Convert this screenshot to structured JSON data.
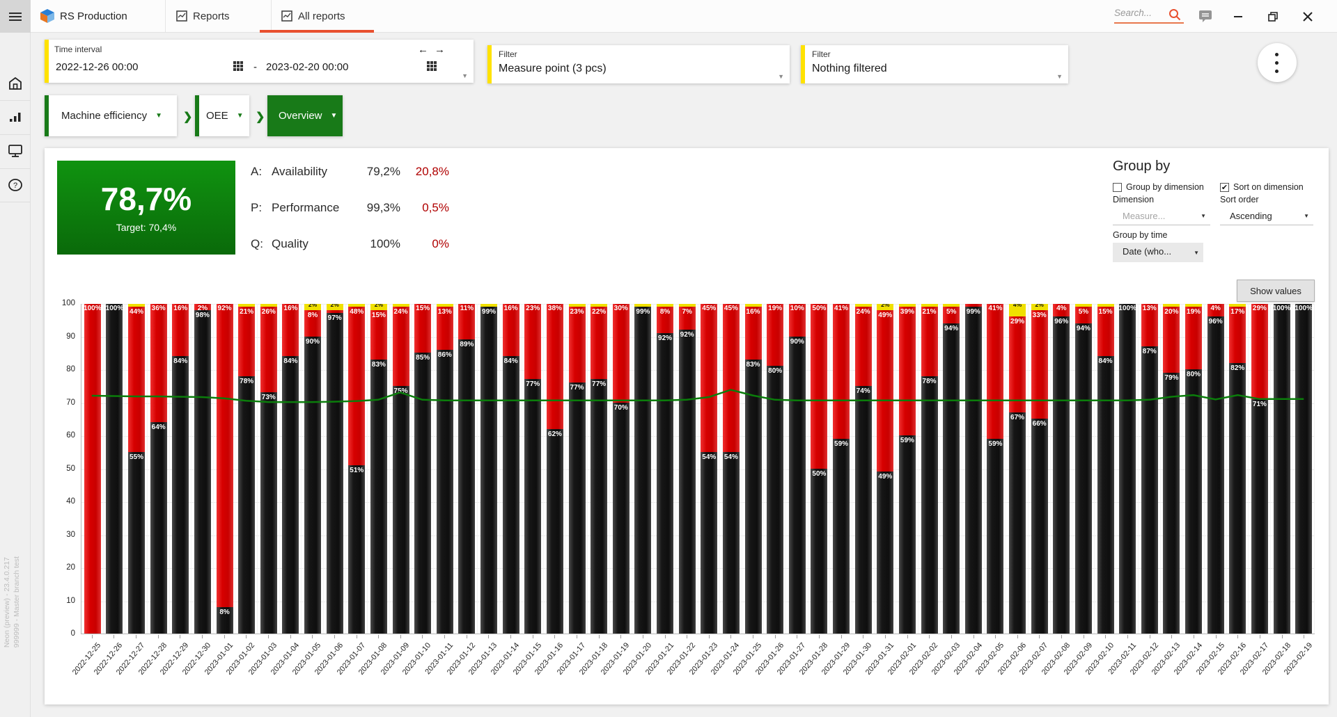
{
  "topbar": {
    "app_name": "RS Production",
    "tabs": [
      {
        "label": "Reports"
      },
      {
        "label": "All reports",
        "active": true
      }
    ],
    "search": {
      "placeholder": "Search..."
    },
    "accent_underline_color": "#e8502f"
  },
  "sidebar": {
    "icons": [
      "home-icon",
      "bar-chart-icon",
      "monitor-icon",
      "help-icon",
      "gear-icon"
    ],
    "version_line1": "999999 - Master branch test",
    "version_line2": "Neon (preview) - 23.4.0.217"
  },
  "filters": {
    "time": {
      "label": "Time interval",
      "start": "2022-12-26 00:00",
      "separator": "-",
      "end": "2023-02-20 00:00",
      "prev_arrow": "←",
      "next_arrow": "→"
    },
    "measure": {
      "label": "Filter",
      "value": "Measure point (3 pcs)"
    },
    "nothing": {
      "label": "Filter",
      "value": "Nothing filtered"
    }
  },
  "breadcrumbs": [
    {
      "label": "Machine efficiency"
    },
    {
      "label": "OEE"
    },
    {
      "label": "Overview",
      "active": true
    }
  ],
  "kpi": {
    "main_value": "78,7%",
    "target": "Target: 70,4%",
    "rows": [
      {
        "prefix": "A:",
        "label": "Availability",
        "value": "79,2%",
        "loss": "20,8%"
      },
      {
        "prefix": "P:",
        "label": "Performance",
        "value": "99,3%",
        "loss": "0,5%"
      },
      {
        "prefix": "Q:",
        "label": "Quality",
        "value": "100%",
        "loss": "0%"
      }
    ],
    "loss_color": "#b00000",
    "box_color": "#0e8a0e"
  },
  "groupby": {
    "title": "Group by",
    "checkbox_group": {
      "label": "Group by dimension",
      "checked": false
    },
    "checkbox_sort": {
      "label": "Sort on dimension",
      "checked": true
    },
    "dimension_label": "Dimension",
    "dimension_value": "Measure...",
    "sort_label": "Sort order",
    "sort_value": "Ascending",
    "time_label": "Group by time",
    "time_value": "Date (who..."
  },
  "chart": {
    "show_values_label": "Show values"
  },
  "chart_data": {
    "type": "bar",
    "stacked": true,
    "ylim": [
      0,
      100
    ],
    "ytick_step": 10,
    "grid": true,
    "legend": "none",
    "x": [
      "2022-12-25",
      "2022-12-26",
      "2022-12-27",
      "2022-12-28",
      "2022-12-29",
      "2022-12-30",
      "2023-01-01",
      "2023-01-02",
      "2023-01-03",
      "2023-01-04",
      "2023-01-05",
      "2023-01-06",
      "2023-01-07",
      "2023-01-08",
      "2023-01-09",
      "2023-01-10",
      "2023-01-11",
      "2023-01-12",
      "2023-01-13",
      "2023-01-14",
      "2023-01-15",
      "2023-01-16",
      "2023-01-17",
      "2023-01-18",
      "2023-01-19",
      "2023-01-20",
      "2023-01-21",
      "2023-01-22",
      "2023-01-23",
      "2023-01-24",
      "2023-01-25",
      "2023-01-26",
      "2023-01-27",
      "2023-01-28",
      "2023-01-29",
      "2023-01-30",
      "2023-01-31",
      "2023-02-01",
      "2023-02-02",
      "2023-02-03",
      "2023-02-04",
      "2023-02-05",
      "2023-02-06",
      "2023-02-07",
      "2023-02-08",
      "2023-02-09",
      "2023-02-10",
      "2023-02-11",
      "2023-02-12",
      "2023-02-13",
      "2023-02-14",
      "2023-02-15",
      "2023-02-16",
      "2023-02-17",
      "2023-02-18",
      "2023-02-19"
    ],
    "series": [
      {
        "name": "black",
        "color": "#1a1a1a",
        "values": [
          0,
          100,
          55,
          64,
          84,
          98,
          8,
          78,
          73,
          84,
          90,
          97,
          51,
          83,
          75,
          85,
          86,
          89,
          99,
          84,
          77,
          62,
          77,
          77,
          70,
          99,
          92,
          92,
          54,
          54,
          83,
          80,
          90,
          50,
          59,
          74,
          49,
          59,
          78,
          94,
          99,
          59,
          67,
          66,
          96,
          94,
          84,
          100,
          87,
          79,
          80,
          96,
          82,
          71,
          100,
          100
        ]
      },
      {
        "name": "red",
        "color": "#d60000",
        "values": [
          100,
          0,
          44,
          36,
          16,
          2,
          92,
          21,
          26,
          16,
          8,
          1,
          48,
          15,
          24,
          15,
          13,
          11,
          0,
          16,
          23,
          38,
          23,
          22,
          30,
          0,
          8,
          7,
          45,
          45,
          16,
          19,
          10,
          50,
          41,
          24,
          49,
          39,
          21,
          5,
          1,
          41,
          29,
          33,
          4,
          5,
          15,
          0,
          13,
          20,
          19,
          4,
          17,
          29,
          0,
          0
        ]
      },
      {
        "name": "yellow",
        "color": "#f0e000",
        "values": [
          0,
          0,
          1,
          0,
          0,
          0,
          0,
          1,
          1,
          0,
          2,
          2,
          1,
          2,
          1,
          0,
          1,
          0,
          1,
          0,
          0,
          0,
          1,
          1,
          0,
          1,
          1,
          1,
          0,
          0,
          1,
          0,
          0,
          0,
          0,
          1,
          2,
          1,
          1,
          1,
          0,
          0,
          4,
          2,
          0,
          1,
          1,
          0,
          0,
          1,
          1,
          0,
          1,
          0,
          0,
          0
        ]
      }
    ],
    "target_line": {
      "color": "#0b7d0b",
      "values": [
        72.2,
        72.1,
        72,
        72,
        71.9,
        71.8,
        71.4,
        70.7,
        70.3,
        70.3,
        70.3,
        70.4,
        70.6,
        71,
        73.2,
        71,
        70.8,
        70.8,
        70.8,
        70.8,
        70.8,
        70.8,
        70.8,
        70.8,
        70.8,
        70.8,
        70.8,
        71,
        71.8,
        74,
        72.3,
        71,
        70.8,
        70.8,
        70.8,
        70.8,
        70.8,
        70.8,
        70.8,
        70.8,
        70.8,
        70.8,
        70.8,
        70.8,
        70.8,
        70.8,
        70.8,
        70.8,
        71,
        71.9,
        72.4,
        71.1,
        72.4,
        71.2,
        71.2,
        71.2
      ]
    }
  }
}
